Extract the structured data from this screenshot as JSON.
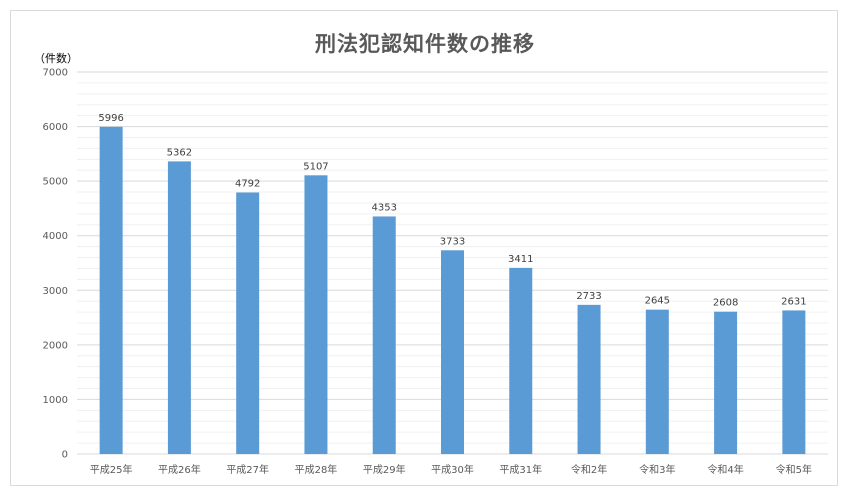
{
  "chart_data": {
    "type": "bar",
    "title": "刑法犯認知件数の推移",
    "ylabel": "（件数）",
    "xlabel": "",
    "categories": [
      "平成25年",
      "平成26年",
      "平成27年",
      "平成28年",
      "平成29年",
      "平成30年",
      "平成31年",
      "令和2年",
      "令和3年",
      "令和4年",
      "令和5年"
    ],
    "values": [
      5996,
      5362,
      4792,
      5107,
      4353,
      3733,
      3411,
      2733,
      2645,
      2608,
      2631
    ],
    "ylim": [
      0,
      7000
    ],
    "yticks": [
      0,
      1000,
      2000,
      3000,
      4000,
      5000,
      6000,
      7000
    ],
    "minor_grid_step": 200,
    "grid": true,
    "legend": "none",
    "bar_color": "#5b9bd5",
    "major_grid_color": "#d9d9d9",
    "minor_grid_color": "#f0f0f0"
  }
}
